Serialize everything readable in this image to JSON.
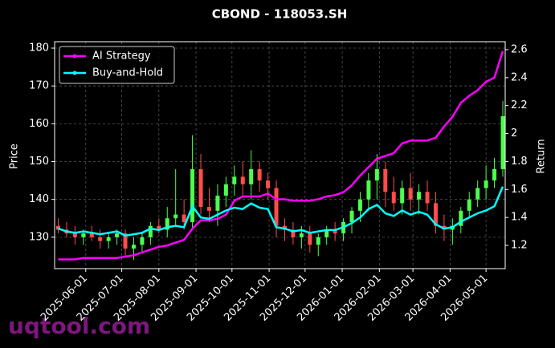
{
  "chart_data": {
    "type": "candlestick",
    "title": "CBOND - 118053.SH",
    "ylabel": "Price",
    "y2label": "Return",
    "watermark": "uqtool.com",
    "x": [
      "2025-05-09",
      "2025-05-16",
      "2025-05-23",
      "2025-05-30",
      "2025-06-06",
      "2025-06-13",
      "2025-06-20",
      "2025-06-27",
      "2025-07-04",
      "2025-07-11",
      "2025-07-18",
      "2025-07-25",
      "2025-08-01",
      "2025-08-08",
      "2025-08-15",
      "2025-08-22",
      "2025-08-29",
      "2025-09-05",
      "2025-09-12",
      "2025-09-19",
      "2025-09-26",
      "2025-10-03",
      "2025-10-10",
      "2025-10-17",
      "2025-10-24",
      "2025-10-31",
      "2025-11-07",
      "2025-11-14",
      "2025-11-21",
      "2025-11-28",
      "2025-12-05",
      "2025-12-12",
      "2025-12-19",
      "2025-12-26",
      "2026-01-02",
      "2026-01-09",
      "2026-01-16",
      "2026-01-23",
      "2026-01-30",
      "2026-02-06",
      "2026-02-13",
      "2026-02-20",
      "2026-02-27",
      "2026-03-06",
      "2026-03-13",
      "2026-03-20",
      "2026-03-27",
      "2026-04-03",
      "2026-04-10",
      "2026-04-17",
      "2026-04-24",
      "2026-05-01",
      "2026-05-08",
      "2026-05-15"
    ],
    "open": [
      133,
      132,
      131,
      130,
      131,
      130,
      129,
      130,
      131,
      127,
      128,
      130,
      133,
      132,
      135,
      136,
      134,
      148,
      138,
      137,
      141,
      144,
      146,
      144,
      148,
      145,
      143,
      133,
      132,
      130,
      131,
      128,
      130,
      132,
      131,
      134,
      137,
      140,
      145,
      148,
      142,
      139,
      143,
      140,
      142,
      139,
      133,
      132,
      133,
      137,
      140,
      143,
      145,
      148
    ],
    "high": [
      135,
      134,
      133,
      132,
      133,
      132,
      131,
      132,
      132,
      130,
      131,
      134,
      135,
      138,
      148,
      140,
      157,
      152,
      143,
      144,
      146,
      149,
      150,
      153,
      150,
      147,
      145,
      135,
      134,
      133,
      133,
      131,
      133,
      134,
      135,
      138,
      142,
      147,
      152,
      150,
      146,
      145,
      147,
      144,
      145,
      142,
      136,
      135,
      138,
      142,
      145,
      149,
      151,
      166
    ],
    "low": [
      131,
      130,
      128,
      128,
      129,
      127,
      127,
      128,
      125,
      124,
      126,
      128,
      131,
      130,
      133,
      132,
      132,
      136,
      134,
      133,
      138,
      141,
      141,
      140,
      142,
      140,
      130,
      129,
      128,
      127,
      126,
      125,
      128,
      129,
      129,
      131,
      134,
      137,
      140,
      138,
      137,
      136,
      137,
      136,
      137,
      131,
      129,
      128,
      131,
      135,
      138,
      140,
      143,
      146
    ],
    "close": [
      132,
      131,
      130,
      131,
      130,
      129,
      130,
      131,
      127,
      128,
      130,
      133,
      132,
      135,
      136,
      134,
      148,
      138,
      137,
      141,
      144,
      146,
      144,
      148,
      145,
      143,
      133,
      132,
      130,
      131,
      128,
      130,
      132,
      131,
      134,
      137,
      140,
      145,
      148,
      142,
      139,
      143,
      140,
      142,
      139,
      133,
      132,
      133,
      137,
      140,
      143,
      145,
      148,
      162
    ],
    "up_color": "#4cff4c",
    "down_color": "#ff4c4c",
    "series": [
      {
        "name": "AI Strategy",
        "color": "#ff00ff",
        "axis": "y2",
        "values": [
          1.1,
          1.1,
          1.1,
          1.11,
          1.11,
          1.11,
          1.11,
          1.11,
          1.12,
          1.13,
          1.15,
          1.17,
          1.19,
          1.2,
          1.22,
          1.24,
          1.32,
          1.38,
          1.38,
          1.39,
          1.42,
          1.52,
          1.55,
          1.55,
          1.55,
          1.57,
          1.53,
          1.53,
          1.52,
          1.52,
          1.52,
          1.53,
          1.55,
          1.56,
          1.58,
          1.63,
          1.7,
          1.76,
          1.82,
          1.84,
          1.86,
          1.93,
          1.95,
          1.95,
          1.95,
          1.97,
          2.05,
          2.12,
          2.22,
          2.27,
          2.31,
          2.37,
          2.4,
          2.59
        ]
      },
      {
        "name": "Buy-and-Hold",
        "color": "#00ffff",
        "axis": "y2",
        "values": [
          1.32,
          1.3,
          1.29,
          1.3,
          1.29,
          1.28,
          1.29,
          1.3,
          1.27,
          1.28,
          1.29,
          1.32,
          1.31,
          1.33,
          1.34,
          1.33,
          1.48,
          1.4,
          1.39,
          1.42,
          1.45,
          1.47,
          1.46,
          1.5,
          1.47,
          1.46,
          1.33,
          1.32,
          1.3,
          1.31,
          1.29,
          1.3,
          1.31,
          1.31,
          1.33,
          1.36,
          1.4,
          1.46,
          1.49,
          1.43,
          1.41,
          1.45,
          1.42,
          1.44,
          1.42,
          1.35,
          1.32,
          1.33,
          1.37,
          1.4,
          1.43,
          1.45,
          1.48,
          1.62
        ]
      }
    ],
    "xlim": [
      "2025-05-06",
      "2026-05-17"
    ],
    "xticks": [
      "2025-06-01",
      "2025-07-01",
      "2025-08-01",
      "2025-09-01",
      "2025-10-01",
      "2025-11-01",
      "2025-12-01",
      "2026-01-01",
      "2026-02-01",
      "2026-03-01",
      "2026-04-01",
      "2026-05-01"
    ],
    "ylim": [
      121.7,
      181.7
    ],
    "yticks": [
      130,
      140,
      150,
      160,
      170,
      180
    ],
    "y2lim": [
      1.034,
      2.657
    ],
    "y2ticks": [
      1.2,
      1.4,
      1.6,
      1.8,
      2.0,
      2.2,
      2.4,
      2.6
    ],
    "grid": true,
    "legend": "upper left"
  }
}
